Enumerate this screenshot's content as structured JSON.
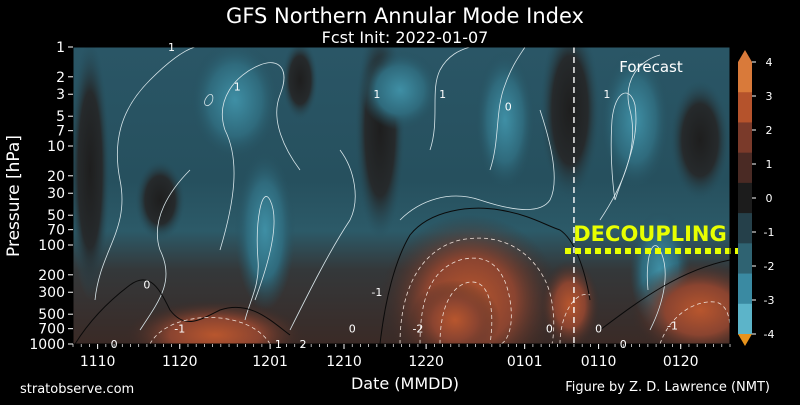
{
  "chart_data": {
    "type": "heatmap",
    "title": "GFS Northern Annular Mode Index",
    "subtitle": "Fcst Init: 2022-01-07",
    "xlabel": "Date (MMDD)",
    "ylabel": "Pressure [hPa]",
    "x_ticks": [
      "1110",
      "1120",
      "1201",
      "1210",
      "1220",
      "0101",
      "0110",
      "0120"
    ],
    "x_tick_days": [
      0,
      10,
      21,
      30,
      40,
      52,
      61,
      71
    ],
    "xlim_days": [
      -3,
      77
    ],
    "forecast_day": 58,
    "y_scale": "log",
    "y_ticks": [
      1,
      2,
      3,
      5,
      7,
      10,
      20,
      30,
      50,
      70,
      100,
      200,
      300,
      500,
      700,
      1000
    ],
    "ylim": [
      1000,
      1
    ],
    "colorbar": {
      "ticks": [
        4,
        3,
        2,
        1,
        0,
        -1,
        -2,
        -3,
        -4
      ],
      "range": [
        -4,
        4
      ],
      "colors": [
        "#d97a3a",
        "#b5532c",
        "#7a3a2a",
        "#4a2a24",
        "#1c1c1c",
        "#25404a",
        "#2f6372",
        "#3a8aa2",
        "#5cb4c9"
      ]
    },
    "contour_labels": [
      {
        "text": "1",
        "day": 9,
        "p": 1
      },
      {
        "text": "1",
        "day": 17,
        "p": 2.5
      },
      {
        "text": "1",
        "day": 34,
        "p": 3
      },
      {
        "text": "1",
        "day": 42,
        "p": 3
      },
      {
        "text": "0",
        "day": 50,
        "p": 4
      },
      {
        "text": "1",
        "day": 62,
        "p": 3
      },
      {
        "text": "0",
        "day": 6,
        "p": 250
      },
      {
        "text": "-1",
        "day": 10,
        "p": 700
      },
      {
        "text": "0",
        "day": 2,
        "p": 1000
      },
      {
        "text": "1",
        "day": 22,
        "p": 1000
      },
      {
        "text": "2",
        "day": 25,
        "p": 1000
      },
      {
        "text": "0",
        "day": 31,
        "p": 700
      },
      {
        "text": "-1",
        "day": 34,
        "p": 300
      },
      {
        "text": "-2",
        "day": 39,
        "p": 700
      },
      {
        "text": "0",
        "day": 55,
        "p": 700
      },
      {
        "text": "0",
        "day": 61,
        "p": 700
      },
      {
        "text": "0",
        "day": 64,
        "p": 1000
      },
      {
        "text": "-1",
        "day": 70,
        "p": 650
      }
    ]
  },
  "annotations": {
    "forecast_label": "Forecast",
    "decoupling_label": "DECOUPLING",
    "decoupling_color": "#e8ff00"
  },
  "footer": {
    "left": "stratobserve.com",
    "right": "Figure by Z. D. Lawrence (NMT)"
  }
}
